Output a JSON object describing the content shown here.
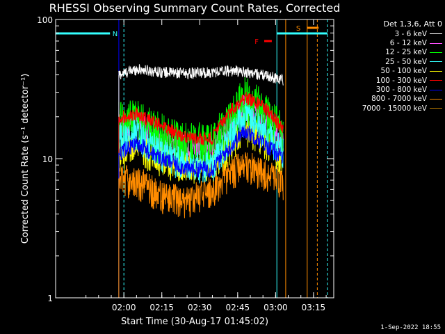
{
  "chart_data": {
    "type": "line",
    "title": "RHESSI Observing Summary Count Rates, Corrected",
    "xlabel": "Start Time (30-Aug-17 01:45:02)",
    "ylabel": "Corrected Count Rate (s⁻¹ detector⁻¹)",
    "y_scale": "log",
    "ylim": [
      1,
      100
    ],
    "xlim_minutes": [
      -12,
      98
    ],
    "x_ticks": [
      {
        "label": "02:00",
        "minute": 15
      },
      {
        "label": "02:15",
        "minute": 30
      },
      {
        "label": "02:30",
        "minute": 45
      },
      {
        "label": "02:45",
        "minute": 60
      },
      {
        "label": "03:00",
        "minute": 75
      },
      {
        "label": "03:15",
        "minute": 90
      }
    ],
    "y_ticks": [
      {
        "label": "1",
        "value": 1
      },
      {
        "label": "10",
        "value": 10
      },
      {
        "label": "100",
        "value": 100
      }
    ],
    "legend_header": "Det 1,3,6, Att 0",
    "legend_placement": "right, outside",
    "data_minutes": [
      13,
      78
    ],
    "series": [
      {
        "name": "3 - 6 keV",
        "color": "#ffffff",
        "x": [
          13,
          20,
          30,
          40,
          50,
          57,
          63,
          70,
          78
        ],
        "values": [
          40,
          44,
          42,
          41,
          42,
          43,
          42,
          40,
          37
        ],
        "noise": 0.04
      },
      {
        "name": "6 - 12 keV",
        "color": "#ff4fff",
        "x": [
          13,
          20,
          30,
          40,
          50,
          57,
          63,
          70,
          78
        ],
        "values": [
          17,
          18,
          14,
          12,
          12,
          17,
          24,
          20,
          14
        ],
        "noise": 0.1
      },
      {
        "name": "12 - 25 keV",
        "color": "#00ff00",
        "x": [
          13,
          20,
          30,
          40,
          50,
          57,
          63,
          70,
          78
        ],
        "values": [
          18,
          19,
          15,
          13,
          13,
          19,
          28,
          22,
          15
        ],
        "noise": 0.18
      },
      {
        "name": "25 - 50 keV",
        "color": "#33ffff",
        "x": [
          13,
          20,
          30,
          40,
          50,
          57,
          63,
          70,
          78
        ],
        "values": [
          14,
          15,
          11,
          9,
          9,
          14,
          21,
          16,
          11
        ],
        "noise": 0.12
      },
      {
        "name": "50 - 100 keV",
        "color": "#ffff00",
        "x": [
          13,
          20,
          30,
          40,
          50,
          57,
          63,
          70,
          78
        ],
        "values": [
          11,
          12,
          10,
          9,
          9,
          12,
          17,
          14,
          10
        ],
        "noise": 0.12
      },
      {
        "name": "100 - 300 keV",
        "color": "#ff0000",
        "x": [
          13,
          20,
          30,
          40,
          50,
          57,
          63,
          70,
          78
        ],
        "values": [
          20,
          21,
          17,
          14,
          14,
          22,
          28,
          24,
          16
        ],
        "noise": 0.05
      },
      {
        "name": "300 - 800 keV",
        "color": "#0000ff",
        "x": [
          13,
          20,
          30,
          40,
          50,
          57,
          63,
          70,
          78
        ],
        "values": [
          11,
          13,
          10,
          8.5,
          8.5,
          12,
          16,
          13,
          10
        ],
        "noise": 0.06
      },
      {
        "name": "800 - 7000 keV",
        "color": "#ff8c00",
        "x": [
          13,
          20,
          30,
          40,
          50,
          57,
          63,
          70,
          78
        ],
        "values": [
          7.2,
          7,
          5.5,
          5,
          6,
          8,
          9,
          8,
          6.5
        ],
        "noise": 0.12
      },
      {
        "name": "7000 - 15000 keV",
        "color": "#c08000",
        "x": [],
        "values": [],
        "noise": 0
      }
    ],
    "annotations": [
      {
        "label": "N",
        "color": "#33ffff",
        "y": 75,
        "x_start": -12,
        "x_end": 9.5,
        "label_minute": 11.5
      },
      {
        "label": "F",
        "color": "#ff0000",
        "y": 67,
        "x_start": 70.5,
        "x_end": 73.5,
        "label_minute": 67.5
      },
      {
        "label": "S",
        "color": "#ff8c00",
        "y": 80,
        "x_start": 87.5,
        "x_end": 92,
        "label_minute": 84
      },
      {
        "label": "",
        "color": "#33ffff",
        "y": 75,
        "x_start": 75.5,
        "x_end": 95.5,
        "label_minute": null
      }
    ],
    "vertical_markers": [
      {
        "minute": 15,
        "color": "#33ffff",
        "style": "dashed"
      },
      {
        "minute": 75.5,
        "color": "#33ffff",
        "style": "solid"
      },
      {
        "minute": 79,
        "color": "#ff8c00",
        "style": "solid"
      },
      {
        "minute": 87.5,
        "color": "#ff8c00",
        "style": "solid"
      },
      {
        "minute": 91.5,
        "color": "#ff8c00",
        "style": "dashed"
      },
      {
        "minute": 95.5,
        "color": "#33ffff",
        "style": "dashed"
      },
      {
        "minute": 13,
        "color": "#0000ff",
        "style": "solid"
      }
    ]
  },
  "footer": {
    "timestamp": "1-Sep-2022 18:55"
  }
}
